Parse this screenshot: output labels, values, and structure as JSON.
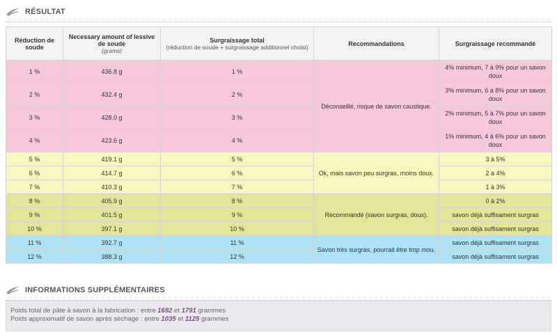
{
  "sections": {
    "result_title": "RÉSULTAT",
    "extra_title": "INFORMATIONS SUPPLÉMENTAIRES"
  },
  "table": {
    "headers": {
      "col1": "Réduction de soude",
      "col2": "Necessary amount of lessive de soude",
      "col2_sub": "(grams)",
      "col3": "Surgraissage total",
      "col3_sub": "(réduction de soude + surgraissage additionnel choisi)",
      "col4": "Recommandations",
      "col5": "Surgraissage recommandé"
    },
    "rows": [
      {
        "reduction": "1 %",
        "amount": "436.8 g",
        "total": "1 %",
        "recommended": "4% minimum, 7 à 9% pour un savon doux"
      },
      {
        "reduction": "2 %",
        "amount": "432.4 g",
        "total": "2 %",
        "recommended": "3% minimum, 6 à 8% pour un savon doux"
      },
      {
        "reduction": "3 %",
        "amount": "428.0 g",
        "total": "3 %",
        "recommended": "2% minimum, 5 à 7% pour un savon doux"
      },
      {
        "reduction": "4 %",
        "amount": "423.6 g",
        "total": "4 %",
        "recommended": "1% minimum, 4 à 6% pour un savon doux"
      },
      {
        "reduction": "5 %",
        "amount": "419.1 g",
        "total": "5 %",
        "recommended": "3 à 5%"
      },
      {
        "reduction": "6 %",
        "amount": "414.7 g",
        "total": "6 %",
        "recommended": "2 à 4%"
      },
      {
        "reduction": "7 %",
        "amount": "410.3 g",
        "total": "7 %",
        "recommended": "1 à 3%"
      },
      {
        "reduction": "8 %",
        "amount": "405.9 g",
        "total": "8 %",
        "recommended": "0 à 2%"
      },
      {
        "reduction": "9 %",
        "amount": "401.5 g",
        "total": "9 %",
        "recommended": "savon déjà suffisament surgras"
      },
      {
        "reduction": "10 %",
        "amount": "397.1 g",
        "total": "10 %",
        "recommended": "savon déjà suffisament surgras"
      },
      {
        "reduction": "11 %",
        "amount": "392.7 g",
        "total": "11 %",
        "recommended": "savon déjà suffisament surgras"
      },
      {
        "reduction": "12 %",
        "amount": "388.3 g",
        "total": "12 %",
        "recommended": "savon déjà suffisament surgras"
      }
    ],
    "groups": [
      {
        "recommendation": "Déconseillé, risque de savon caustique.",
        "color": "#f8c9dc"
      },
      {
        "recommendation": "Ok, mais savon peu surgras, moins doux.",
        "color": "#f8f7bf"
      },
      {
        "recommendation": "Recommandé (savon surgras, doux).",
        "color": "#e3e699"
      },
      {
        "recommendation": "Savon très surgras, pourrait être trop mou.",
        "color": "#aee2f5"
      }
    ]
  },
  "info": {
    "line1_prefix": "Poids total de pâte à savon à la fabrication : entre",
    "line1_min": "1692",
    "line1_mid": "et",
    "line1_max": "1791",
    "line1_unit": "grammes",
    "line2_prefix": "Poids approximatif de savon après séchage : entre",
    "line2_min": "1035",
    "line2_mid": "et",
    "line2_max": "1125",
    "line2_unit": "grammes"
  }
}
